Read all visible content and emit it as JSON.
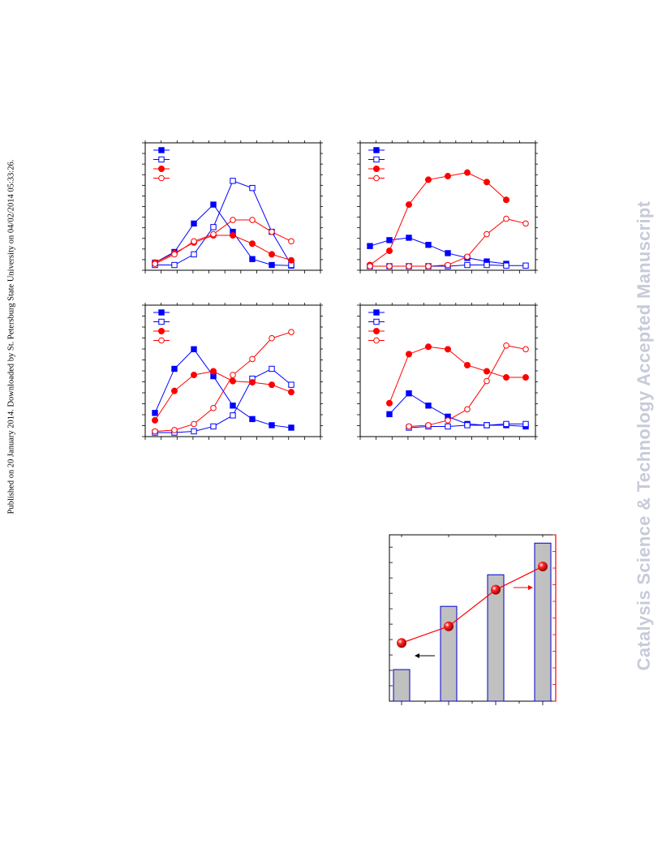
{
  "side_note": "Published on 20 January 2014. Downloaded by St. Petersburg State University on 04/02/2014 05:33:26.",
  "watermark": "Catalysis Science & Technology Accepted Manuscript",
  "colors": {
    "blue": "#0000ff",
    "red": "#ff0000",
    "bar_fill": "#c0c0c0",
    "bar_edge": "#0000cc",
    "arrow_left": "#000000",
    "arrow_right": "#ff0000"
  },
  "chart_data": [
    {
      "type": "line",
      "panel": "top-left",
      "x": [
        1,
        2,
        3,
        4,
        5,
        6,
        7,
        8,
        9
      ],
      "xlim": [
        0.5,
        9.5
      ],
      "ylim": [
        0,
        100
      ],
      "legend": "top-left",
      "series": [
        {
          "marker": "filled-square",
          "color": "blue",
          "values": [
            3,
            12,
            36,
            52,
            29,
            6,
            1,
            0.5,
            null
          ]
        },
        {
          "marker": "open-square",
          "color": "blue",
          "values": [
            1,
            1,
            10,
            33,
            72,
            66,
            29,
            1,
            null
          ]
        },
        {
          "marker": "filled-circle",
          "color": "red",
          "values": [
            3,
            11,
            20,
            26,
            26,
            19,
            10,
            5,
            null
          ]
        },
        {
          "marker": "open-circle",
          "color": "red",
          "values": [
            2,
            10,
            21,
            27,
            39,
            39,
            29,
            21,
            null
          ]
        }
      ]
    },
    {
      "type": "line",
      "panel": "top-right",
      "x": [
        1,
        2,
        3,
        4,
        5,
        6,
        7,
        8,
        9
      ],
      "xlim": [
        0.5,
        9.5
      ],
      "ylim": [
        0,
        100
      ],
      "legend": "top-left",
      "series": [
        {
          "marker": "filled-square",
          "color": "blue",
          "values": [
            17,
            22,
            24,
            18,
            11,
            7,
            4,
            2,
            null
          ]
        },
        {
          "marker": "open-square",
          "color": "blue",
          "values": [
            0,
            0,
            0,
            0,
            0,
            1,
            1,
            0.5,
            0.5
          ]
        },
        {
          "marker": "filled-circle",
          "color": "red",
          "values": [
            1,
            13,
            52,
            73,
            76,
            79,
            71,
            56,
            null
          ]
        },
        {
          "marker": "open-circle",
          "color": "red",
          "values": [
            0,
            0,
            0,
            0,
            1,
            8,
            27,
            40,
            36
          ]
        }
      ]
    },
    {
      "type": "line",
      "panel": "bottom-left",
      "x": [
        1,
        2,
        3,
        4,
        5,
        6,
        7,
        8,
        9
      ],
      "xlim": [
        0.5,
        9.5
      ],
      "ylim": [
        0,
        100
      ],
      "legend": "top-left",
      "series": [
        {
          "marker": "filled-square",
          "color": "blue",
          "values": [
            16,
            52,
            68,
            46,
            22,
            11,
            6,
            4,
            null
          ]
        },
        {
          "marker": "open-square",
          "color": "blue",
          "values": [
            0,
            0,
            1,
            5,
            14,
            44,
            52,
            39,
            null
          ]
        },
        {
          "marker": "filled-circle",
          "color": "red",
          "values": [
            10,
            34,
            47,
            50,
            42,
            41,
            39,
            33,
            null
          ]
        },
        {
          "marker": "open-circle",
          "color": "red",
          "values": [
            1,
            2,
            7,
            20,
            47,
            60,
            77,
            82,
            null
          ]
        }
      ]
    },
    {
      "type": "line",
      "panel": "bottom-right",
      "x": [
        1,
        2,
        3,
        4,
        5,
        6,
        7,
        8,
        9
      ],
      "xlim": [
        0.5,
        9.5
      ],
      "ylim": [
        0,
        100
      ],
      "legend": "top-left",
      "series": [
        {
          "marker": "filled-square",
          "color": "blue",
          "values": [
            null,
            15,
            32,
            22,
            13,
            7,
            6,
            6,
            5
          ]
        },
        {
          "marker": "open-square",
          "color": "blue",
          "values": [
            null,
            null,
            4,
            5,
            5,
            6,
            6,
            7,
            7
          ]
        },
        {
          "marker": "filled-circle",
          "color": "red",
          "values": [
            null,
            24,
            64,
            70,
            68,
            55,
            50,
            45,
            45
          ]
        },
        {
          "marker": "open-circle",
          "color": "red",
          "values": [
            null,
            null,
            5,
            6,
            10,
            19,
            42,
            71,
            68
          ]
        }
      ]
    },
    {
      "type": "bar",
      "panel": "bottom-bar-with-line",
      "categories": [
        "1",
        "2",
        "3",
        "4"
      ],
      "values": [
        19,
        57,
        76,
        95
      ],
      "ylim": [
        0,
        100
      ],
      "line_series": {
        "marker": "sphere",
        "color": "red",
        "values": [
          35,
          45,
          67,
          81
        ],
        "ylim": [
          0,
          100
        ]
      }
    }
  ]
}
